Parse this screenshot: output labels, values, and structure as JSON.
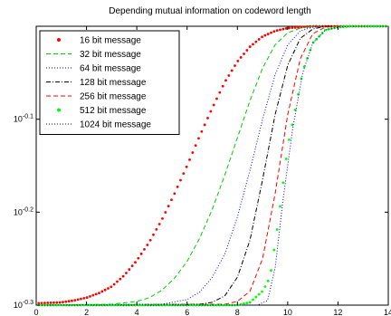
{
  "chart_data": {
    "type": "line",
    "title": "Depending mutual information on codeword length",
    "xlabel": "",
    "ylabel": "",
    "xlim": [
      0,
      14
    ],
    "ylim": [
      -0.3,
      0
    ],
    "y_scale": "log10",
    "grid": false,
    "legend_position": "top-left",
    "x_ticks": [
      {
        "value": 0,
        "label": "0"
      },
      {
        "value": 2,
        "label": "2"
      },
      {
        "value": 4,
        "label": "4"
      },
      {
        "value": 6,
        "label": "6"
      },
      {
        "value": 8,
        "label": "8"
      },
      {
        "value": 10,
        "label": "10"
      },
      {
        "value": 12,
        "label": "12"
      },
      {
        "value": 14,
        "label": "14"
      }
    ],
    "y_ticks": [
      {
        "value": -0.1,
        "base": "10",
        "exp": "-0.1"
      },
      {
        "value": -0.2,
        "base": "10",
        "exp": "-0.2"
      },
      {
        "value": -0.3,
        "base": "10",
        "exp": "-0.3"
      }
    ],
    "series": [
      {
        "name": "16 bit message",
        "color": "#ff0000",
        "style": "dot-marker",
        "points": [
          [
            0,
            -0.298
          ],
          [
            1,
            -0.297
          ],
          [
            1.5,
            -0.295
          ],
          [
            2,
            -0.292
          ],
          [
            2.5,
            -0.287
          ],
          [
            3,
            -0.28
          ],
          [
            3.5,
            -0.268
          ],
          [
            4,
            -0.252
          ],
          [
            4.5,
            -0.232
          ],
          [
            5,
            -0.208
          ],
          [
            5.5,
            -0.18
          ],
          [
            6,
            -0.15
          ],
          [
            6.5,
            -0.118
          ],
          [
            7,
            -0.088
          ],
          [
            7.5,
            -0.06
          ],
          [
            8,
            -0.038
          ],
          [
            8.5,
            -0.022
          ],
          [
            9,
            -0.011
          ],
          [
            9.5,
            -0.005
          ],
          [
            10,
            -0.002
          ],
          [
            10.5,
            -0.001
          ],
          [
            11,
            0
          ],
          [
            14,
            0
          ]
        ]
      },
      {
        "name": "32 bit message",
        "color": "#00cc00",
        "style": "dashed",
        "points": [
          [
            0,
            -0.3
          ],
          [
            3,
            -0.299
          ],
          [
            4,
            -0.296
          ],
          [
            4.5,
            -0.292
          ],
          [
            5,
            -0.284
          ],
          [
            5.5,
            -0.271
          ],
          [
            6,
            -0.253
          ],
          [
            6.5,
            -0.228
          ],
          [
            7,
            -0.197
          ],
          [
            7.5,
            -0.16
          ],
          [
            8,
            -0.12
          ],
          [
            8.5,
            -0.08
          ],
          [
            9,
            -0.045
          ],
          [
            9.5,
            -0.02
          ],
          [
            10,
            -0.007
          ],
          [
            10.5,
            -0.002
          ],
          [
            11,
            0
          ],
          [
            14,
            0
          ]
        ]
      },
      {
        "name": "64 bit message",
        "color": "#0000ff",
        "style": "dotted",
        "points": [
          [
            0,
            -0.3
          ],
          [
            5,
            -0.299
          ],
          [
            6,
            -0.294
          ],
          [
            6.5,
            -0.286
          ],
          [
            7,
            -0.27
          ],
          [
            7.5,
            -0.245
          ],
          [
            8,
            -0.205
          ],
          [
            8.5,
            -0.155
          ],
          [
            9,
            -0.1
          ],
          [
            9.5,
            -0.052
          ],
          [
            10,
            -0.02
          ],
          [
            10.5,
            -0.005
          ],
          [
            11,
            -0.001
          ],
          [
            11.5,
            0
          ],
          [
            14,
            0
          ]
        ]
      },
      {
        "name": "128 bit message",
        "color": "#000000",
        "style": "dash-dot",
        "points": [
          [
            0,
            -0.3
          ],
          [
            6.5,
            -0.299
          ],
          [
            7,
            -0.297
          ],
          [
            7.5,
            -0.29
          ],
          [
            8,
            -0.27
          ],
          [
            8.5,
            -0.23
          ],
          [
            9,
            -0.165
          ],
          [
            9.5,
            -0.095
          ],
          [
            10,
            -0.042
          ],
          [
            10.5,
            -0.013
          ],
          [
            11,
            -0.003
          ],
          [
            11.5,
            0
          ],
          [
            14,
            0
          ]
        ]
      },
      {
        "name": "256 bit message",
        "color": "#ff0000",
        "style": "dashed",
        "points": [
          [
            0,
            -0.3
          ],
          [
            7.5,
            -0.299
          ],
          [
            8,
            -0.296
          ],
          [
            8.5,
            -0.285
          ],
          [
            9,
            -0.25
          ],
          [
            9.5,
            -0.18
          ],
          [
            10,
            -0.095
          ],
          [
            10.5,
            -0.035
          ],
          [
            11,
            -0.008
          ],
          [
            11.5,
            -0.001
          ],
          [
            12,
            0
          ],
          [
            14,
            0
          ]
        ]
      },
      {
        "name": "512 bit message",
        "color": "#00ff00",
        "style": "dot-marker",
        "points": [
          [
            0,
            -0.3
          ],
          [
            8,
            -0.3
          ],
          [
            8.5,
            -0.297
          ],
          [
            9,
            -0.285
          ],
          [
            9.3,
            -0.27
          ],
          [
            9.6,
            -0.215
          ],
          [
            10,
            -0.13
          ],
          [
            10.3,
            -0.09
          ],
          [
            10.6,
            -0.048
          ],
          [
            11,
            -0.018
          ],
          [
            11.5,
            -0.004
          ],
          [
            12,
            -0.001
          ],
          [
            12.5,
            0
          ],
          [
            14,
            0
          ]
        ]
      },
      {
        "name": "1024 bit message",
        "color": "#0000cc",
        "style": "dotted",
        "points": [
          [
            0,
            -0.3
          ],
          [
            8.8,
            -0.3
          ],
          [
            9.2,
            -0.295
          ],
          [
            9.5,
            -0.26
          ],
          [
            9.8,
            -0.19
          ],
          [
            10.2,
            -0.11
          ],
          [
            10.6,
            -0.05
          ],
          [
            11,
            -0.018
          ],
          [
            11.5,
            -0.004
          ],
          [
            12,
            -0.001
          ],
          [
            12.5,
            0
          ],
          [
            14,
            0
          ]
        ]
      }
    ]
  }
}
